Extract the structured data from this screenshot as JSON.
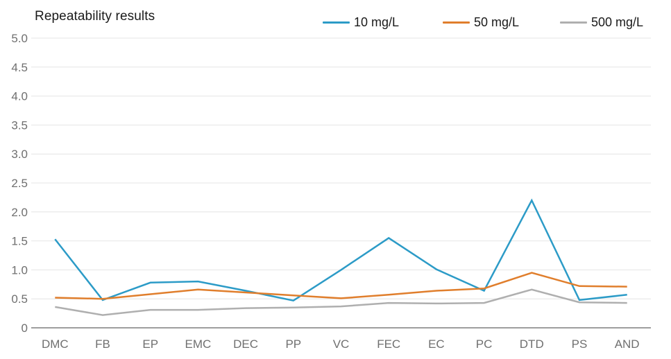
{
  "colors": {
    "background": "#FFFFFF",
    "grid_line": "#E4E4E4",
    "axis_line": "#9E9E9E",
    "axis_text": "#6F6F6F",
    "title_text": "#1A1A1A",
    "series_blue": "#2C9BC7",
    "series_orange": "#E07E2C",
    "series_gray": "#AFAFAF"
  },
  "chart_data": {
    "type": "line",
    "title": "Repeatability results",
    "xlabel": "",
    "ylabel": "",
    "categories": [
      "DMC",
      "FB",
      "EP",
      "EMC",
      "DEC",
      "PP",
      "VC",
      "FEC",
      "EC",
      "PC",
      "DTD",
      "PS",
      "AND"
    ],
    "series": [
      {
        "name": "10 mg/L",
        "color": "#2C9BC7",
        "values": [
          1.53,
          0.48,
          0.78,
          0.8,
          0.64,
          0.47,
          1.0,
          1.55,
          1.01,
          0.64,
          2.2,
          0.48,
          0.57
        ]
      },
      {
        "name": "50 mg/L",
        "color": "#E07E2C",
        "values": [
          0.52,
          0.5,
          0.58,
          0.66,
          0.61,
          0.56,
          0.51,
          0.57,
          0.64,
          0.68,
          0.95,
          0.72,
          0.71
        ]
      },
      {
        "name": "500 mg/L",
        "color": "#AFAFAF",
        "values": [
          0.36,
          0.22,
          0.31,
          0.31,
          0.34,
          0.35,
          0.37,
          0.43,
          0.42,
          0.43,
          0.66,
          0.44,
          0.43
        ]
      }
    ],
    "ylim": [
      0,
      5
    ],
    "y_ticks": [
      {
        "label": "0",
        "value": 0
      },
      {
        "label": "0.5",
        "value": 0.5
      },
      {
        "label": "1.0",
        "value": 1.0
      },
      {
        "label": "1.5",
        "value": 1.5
      },
      {
        "label": "2.0",
        "value": 2.0
      },
      {
        "label": "2.5",
        "value": 2.5
      },
      {
        "label": "3.0",
        "value": 3.0
      },
      {
        "label": "3.5",
        "value": 3.5
      },
      {
        "label": "4.0",
        "value": 4.0
      },
      {
        "label": "4.5",
        "value": 4.5
      },
      {
        "label": "5.0",
        "value": 5.0
      }
    ],
    "grid": true,
    "legend_position": "top"
  }
}
